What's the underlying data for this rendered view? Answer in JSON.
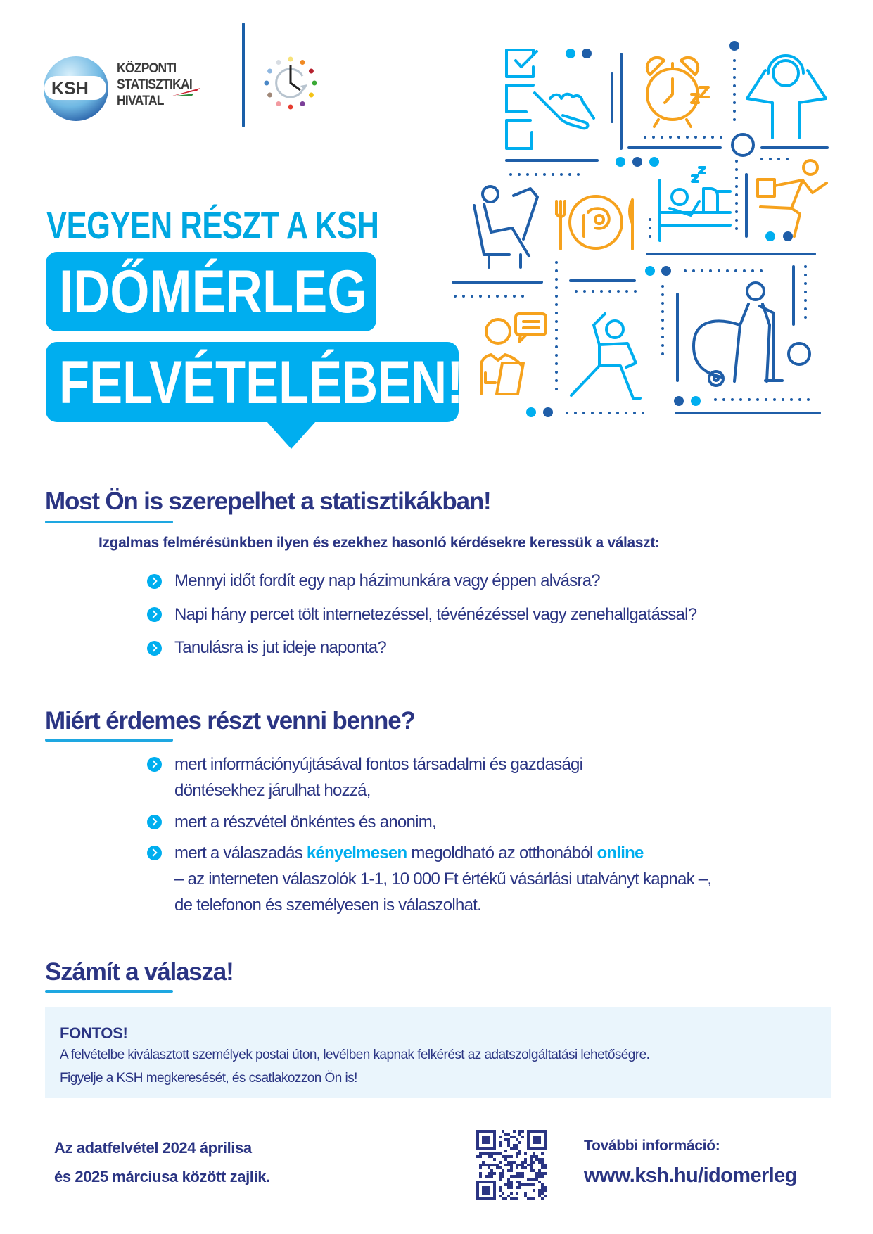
{
  "logo": {
    "badge": "KSH",
    "lines": [
      "KÖZPONTI",
      "STATISZTIKAI",
      "HIVATAL"
    ]
  },
  "hero": {
    "kicker": "VEGYEN RÉSZT A KSH",
    "title_line1": "IDŐMÉRLEG",
    "title_line2": "FELVÉTELÉBEN!"
  },
  "section1": {
    "heading": "Most Ön is szerepelhet a statisztikákban!",
    "intro": "Izgalmas felmérésünkben ilyen és ezekhez hasonló kérdésekre keressük a választ:",
    "bullets": [
      "Mennyi időt fordít egy nap házimunkára vagy éppen alvásra?",
      "Napi hány percet tölt internetezéssel, tévénézéssel vagy zenehallgatással?",
      "Tanulásra is jut ideje naponta?"
    ]
  },
  "section2": {
    "heading": "Miért érdemes részt venni benne?",
    "b1_line1": "mert információnyújtásával fontos társadalmi és gazdasági",
    "b1_line2": "döntésekhez járulhat hozzá,",
    "b2": "mert a részvétel önkéntes és anonim,",
    "b3_a": "mert a válaszadás ",
    "b3_hl1": "kényelmesen",
    "b3_b": " megoldható az otthonából ",
    "b3_hl2": "online",
    "b3_line2": "– az interneten válaszolók 1-1, 10 000 Ft értékű vásárlási utalványt kapnak –,",
    "b3_line3": "de telefonon és személyesen is válaszolhat."
  },
  "section3": {
    "heading": "Számít a válasza!"
  },
  "notice": {
    "title": "FONTOS!",
    "line1": "A felvételbe kiválasztott személyek postai úton, levélben kapnak felkérést az adatszolgáltatási lehetőségre.",
    "line2": "Figyelje a KSH megkeresését, és csatlakozzon Ön is!"
  },
  "footer": {
    "period_line1": "Az adatfelvétel 2024 áprilisa",
    "period_line2": "és 2025 márciusa között zajlik.",
    "more_label": "További információ:",
    "url": "www.ksh.hu/idomerleg"
  },
  "colors": {
    "light_blue": "#00aeef",
    "dark_blue": "#1f5ea8",
    "navy_text": "#2b3583",
    "orange": "#f6a21d",
    "notice_bg": "#eaf5fc"
  }
}
